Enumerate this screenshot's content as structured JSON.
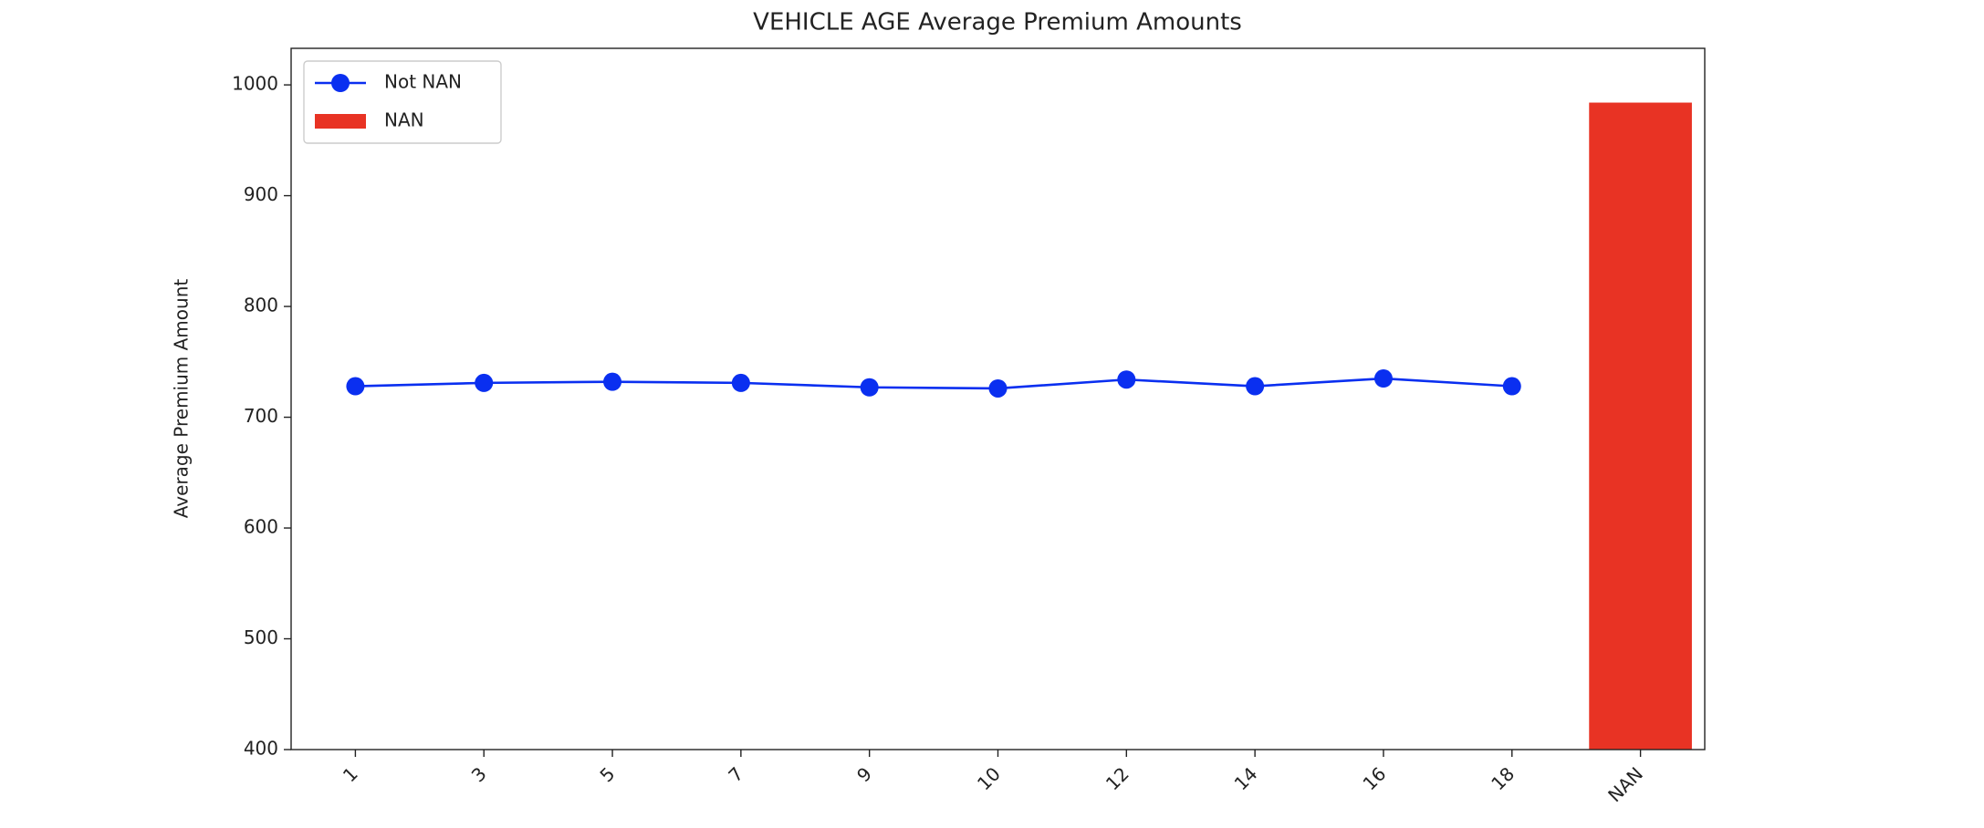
{
  "chart_data": {
    "type": "combo",
    "title": "VEHICLE AGE Average Premium Amounts",
    "y_label": "Average Premium Amount",
    "categories": [
      "1",
      "3",
      "5",
      "7",
      "9",
      "10",
      "12",
      "14",
      "16",
      "18",
      "NAN"
    ],
    "series": [
      {
        "name": "Not NAN",
        "type": "line",
        "color": "#0a2ff0",
        "values": [
          728,
          731,
          732,
          731,
          727,
          726,
          734,
          728,
          735,
          728,
          null
        ]
      },
      {
        "name": "NAN",
        "type": "bar",
        "color": "#e83324",
        "values": [
          null,
          null,
          null,
          null,
          null,
          null,
          null,
          null,
          null,
          null,
          984
        ]
      }
    ],
    "ylim": [
      400,
      1033
    ],
    "yticks": [
      400,
      500,
      600,
      700,
      800,
      900,
      1000
    ],
    "legend": "upper left",
    "grid": false
  }
}
